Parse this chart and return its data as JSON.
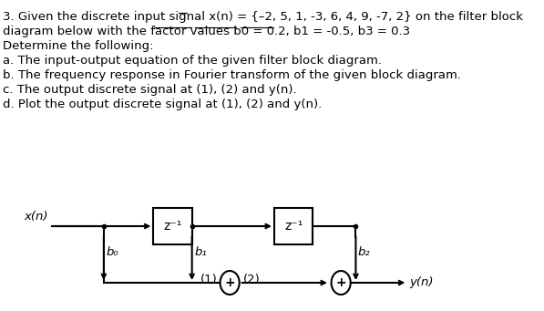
{
  "title_lines": [
    "3. Given the discrete input signal x(n) = {–2, 5, 1, -3, 6, 4, 9, -7, 2} on the filter block",
    "diagram below with the factor values b0 = 0.2, b1 = -0.5, b3 = 0.3",
    "Determine the following:",
    "a. The input-output equation of the given filter block diagram.",
    "b. The frequency response in Fourier transform of the given block diagram.",
    "c. The output discrete signal at (1), (2) and y(n).",
    "d. Plot the output discrete signal at (1), (2) and y(n)."
  ],
  "underline_words": {
    "line0": [
      "–2"
    ],
    "line1": [
      "b0 = 0.2,",
      "b1 = -0.5,",
      "b3 = 0.3"
    ]
  },
  "bg_color": "#ffffff",
  "text_color": "#000000",
  "font_size": 9.5,
  "diagram": {
    "x_input_label": "x(n)",
    "y_output_label": "y(n)",
    "box1_label": "z⁻¹",
    "box2_label": "z⁻¹",
    "b0_label": "b₀",
    "b1_label": "b₁",
    "b2_label": "b₂",
    "node1_label": "(1)",
    "node2_label": "(2)"
  }
}
